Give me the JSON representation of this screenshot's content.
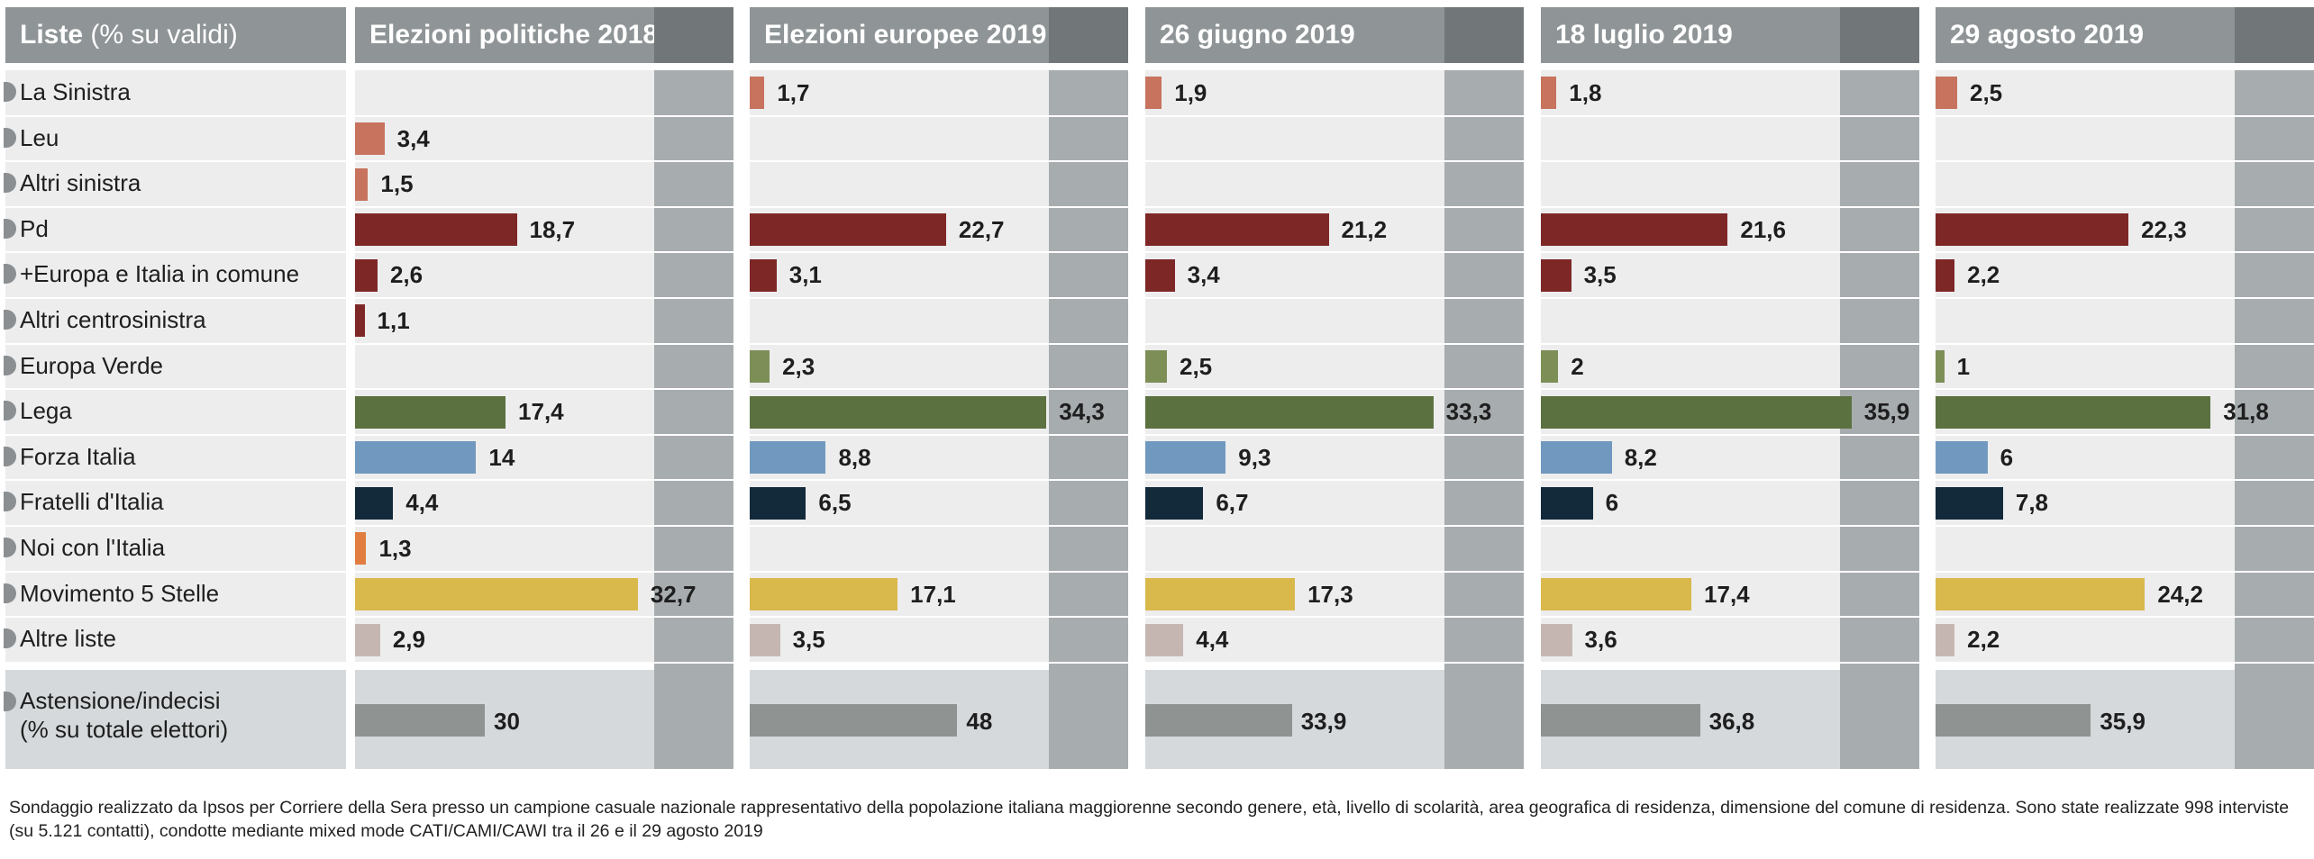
{
  "header": {
    "corner_title_bold": "Liste",
    "corner_title_light": "(% su validi)",
    "columns": [
      "Elezioni politiche 2018",
      "Elezioni europee 2019",
      "26 giugno 2019",
      "18 luglio 2019",
      "29 agosto 2019"
    ]
  },
  "chart_data": {
    "type": "bar",
    "orientation": "horizontal",
    "title": "",
    "categories": [
      "La Sinistra",
      "Leu",
      "Altri sinistra",
      "Pd",
      "+Europa e Italia in comune",
      "Altri centrosinistra",
      "Europa Verde",
      "Lega",
      "Forza Italia",
      "Fratelli d'Italia",
      "Noi con l'Italia",
      "Movimento 5 Stelle",
      "Altre liste"
    ],
    "category_colors": [
      "#c7735e",
      "#c7735e",
      "#c7735e",
      "#7e2727",
      "#7e2727",
      "#7e2727",
      "#7d8f56",
      "#5b7140",
      "#7199bf",
      "#132a3b",
      "#e07d3f",
      "#d9b84c",
      "#c6b6b2"
    ],
    "series": [
      {
        "name": "Elezioni politiche 2018",
        "values": [
          null,
          3.4,
          1.5,
          18.7,
          2.6,
          1.1,
          null,
          17.4,
          14,
          4.4,
          1.3,
          32.7,
          2.9
        ]
      },
      {
        "name": "Elezioni europee 2019",
        "values": [
          1.7,
          null,
          null,
          22.7,
          3.1,
          null,
          2.3,
          34.3,
          8.8,
          6.5,
          null,
          17.1,
          3.5
        ]
      },
      {
        "name": "26 giugno 2019",
        "values": [
          1.9,
          null,
          null,
          21.2,
          3.4,
          null,
          2.5,
          33.3,
          9.3,
          6.7,
          null,
          17.3,
          4.4
        ]
      },
      {
        "name": "18 luglio 2019",
        "values": [
          1.8,
          null,
          null,
          21.6,
          3.5,
          null,
          2,
          35.9,
          8.2,
          6,
          null,
          17.4,
          3.6
        ]
      },
      {
        "name": "29 agosto 2019",
        "values": [
          2.5,
          null,
          null,
          22.3,
          2.2,
          null,
          1,
          31.8,
          6,
          7.8,
          null,
          24.2,
          2.2
        ]
      }
    ],
    "abstention": {
      "label_line1": "Astensione/indecisi",
      "label_line2": "(% su totale elettori)",
      "color": "#8f9391",
      "values": [
        30,
        48,
        33.9,
        36.8,
        35.9
      ]
    },
    "value_scale_max": 50
  },
  "footnote": {
    "line1": "Sondaggio realizzato da Ipsos per Corriere della Sera presso un campione casuale nazionale rappresentativo della popolazione italiana maggiorenne secondo genere, età, livello di scolarità, area geografica di residenza, dimensione del comune di residenza. Sono state realizzate 998 interviste",
    "line2": "(su 5.121 contatti), condotte mediante mixed mode CATI/CAMI/CAWI tra il 26 e il 29 agosto 2019"
  },
  "colors": {
    "header_bg": "#8f9597",
    "header_stub": "#717779",
    "cell_bg": "#ededee",
    "abstention_bg": "#d5d9db",
    "strip": "#a7acaf"
  }
}
